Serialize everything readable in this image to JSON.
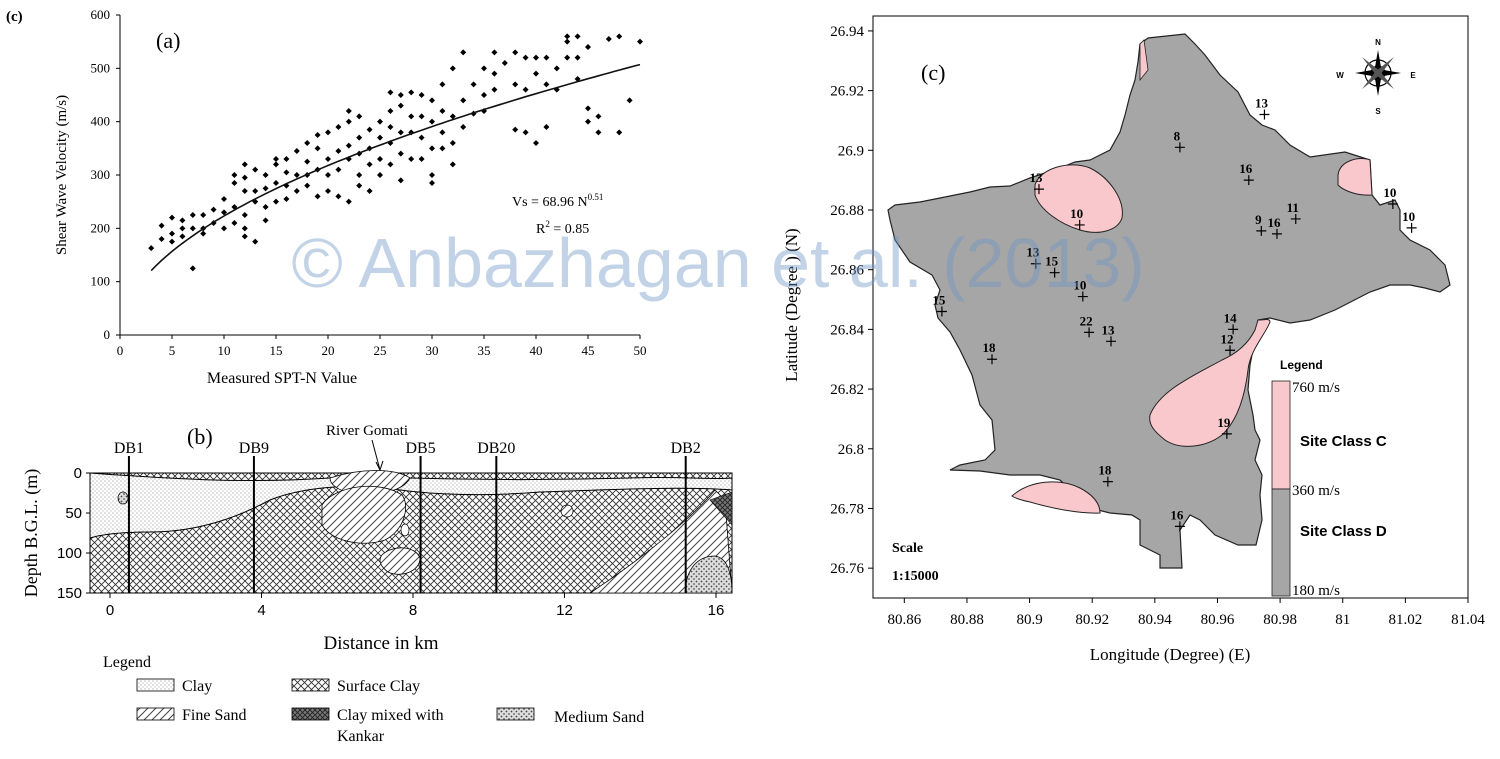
{
  "watermark": "© Anbazhagan et al. (2013)",
  "panel_a": {
    "corner_label": "(c)",
    "panel_label": "(a)",
    "equation_main": "Vs = 68.96 N",
    "equation_exp": "0.51",
    "r2_main": "R",
    "r2_sup": "2",
    "r2_value": " = 0.85"
  },
  "panel_b": {
    "panel_label": "(b)",
    "river_label": "River Gomati",
    "boreholes": [
      {
        "name": "DB1",
        "km": 0.5
      },
      {
        "name": "DB9",
        "km": 3.8
      },
      {
        "name": "DB5",
        "km": 8.2
      },
      {
        "name": "DB20",
        "km": 10.2
      },
      {
        "name": "DB2",
        "km": 15.2
      }
    ],
    "legend_title": "Legend",
    "legend": {
      "clay": "Clay",
      "fine_sand": "Fine Sand",
      "surface_clay": "Surface Clay",
      "kankar_1": "Clay mixed with",
      "kankar_2": "Kankar",
      "medium_sand": "Medium Sand"
    }
  },
  "panel_c": {
    "panel_label": "(c)",
    "compass": {
      "n": "N",
      "s": "S",
      "e": "E",
      "w": "W"
    },
    "scale_title": "Scale",
    "scale_value": "1:15000",
    "legend_title": "Legend",
    "colorbar": {
      "top": "760 m/s",
      "mid": "360 m/s",
      "bottom": "180 m/s",
      "class_c": "Site Class C",
      "class_d": "Site Class D",
      "color_c": "#f8c8cc",
      "color_d": "#a6a6a6"
    },
    "points": [
      {
        "label": "13",
        "lon": 80.975,
        "lat": 26.912
      },
      {
        "label": "8",
        "lon": 80.948,
        "lat": 26.901
      },
      {
        "label": "16",
        "lon": 80.97,
        "lat": 26.89
      },
      {
        "label": "13",
        "lon": 80.903,
        "lat": 26.887
      },
      {
        "label": "10",
        "lon": 80.916,
        "lat": 26.875
      },
      {
        "label": "10",
        "lon": 81.016,
        "lat": 26.882
      },
      {
        "label": "10",
        "lon": 81.022,
        "lat": 26.874
      },
      {
        "label": "9",
        "lon": 80.974,
        "lat": 26.873
      },
      {
        "label": "16",
        "lon": 80.979,
        "lat": 26.872
      },
      {
        "label": "11",
        "lon": 80.985,
        "lat": 26.877
      },
      {
        "label": "13",
        "lon": 80.902,
        "lat": 26.862
      },
      {
        "label": "15",
        "lon": 80.908,
        "lat": 26.859
      },
      {
        "label": "15",
        "lon": 80.872,
        "lat": 26.846
      },
      {
        "label": "10",
        "lon": 80.917,
        "lat": 26.851
      },
      {
        "label": "14",
        "lon": 80.965,
        "lat": 26.84
      },
      {
        "label": "12",
        "lon": 80.964,
        "lat": 26.833
      },
      {
        "label": "22",
        "lon": 80.919,
        "lat": 26.839
      },
      {
        "label": "13",
        "lon": 80.926,
        "lat": 26.836
      },
      {
        "label": "18",
        "lon": 80.888,
        "lat": 26.83
      },
      {
        "label": "19",
        "lon": 80.963,
        "lat": 26.805
      },
      {
        "label": "18",
        "lon": 80.925,
        "lat": 26.789
      },
      {
        "label": "16",
        "lon": 80.948,
        "lat": 26.774
      }
    ]
  },
  "chart_data": [
    {
      "type": "scatter",
      "xlabel": "Measured SPT-N Value",
      "ylabel": "Shear Wave Velocity (m/s)",
      "xlim": [
        0,
        50
      ],
      "ylim": [
        0,
        600
      ],
      "xticks": [
        0,
        5,
        10,
        15,
        20,
        25,
        30,
        35,
        40,
        45,
        50
      ],
      "yticks": [
        0,
        100,
        200,
        300,
        400,
        500,
        600
      ],
      "fit": {
        "a": 68.96,
        "b": 0.51,
        "r2": 0.85
      },
      "points": [
        [
          3,
          163
        ],
        [
          4,
          180
        ],
        [
          4,
          205
        ],
        [
          5,
          190
        ],
        [
          5,
          220
        ],
        [
          5,
          175
        ],
        [
          6,
          200
        ],
        [
          6,
          215
        ],
        [
          6,
          185
        ],
        [
          7,
          125
        ],
        [
          7,
          225
        ],
        [
          7,
          200
        ],
        [
          8,
          190
        ],
        [
          8,
          225
        ],
        [
          8,
          200
        ],
        [
          9,
          235
        ],
        [
          9,
          210
        ],
        [
          10,
          200
        ],
        [
          10,
          255
        ],
        [
          10,
          230
        ],
        [
          11,
          240
        ],
        [
          11,
          285
        ],
        [
          11,
          210
        ],
        [
          11,
          300
        ],
        [
          12,
          270
        ],
        [
          12,
          295
        ],
        [
          12,
          320
        ],
        [
          12,
          185
        ],
        [
          12,
          200
        ],
        [
          12,
          225
        ],
        [
          13,
          310
        ],
        [
          13,
          270
        ],
        [
          13,
          250
        ],
        [
          13,
          175
        ],
        [
          14,
          240
        ],
        [
          14,
          215
        ],
        [
          14,
          300
        ],
        [
          14,
          275
        ],
        [
          15,
          320
        ],
        [
          15,
          285
        ],
        [
          15,
          250
        ],
        [
          15,
          330
        ],
        [
          16,
          305
        ],
        [
          16,
          330
        ],
        [
          16,
          280
        ],
        [
          16,
          255
        ],
        [
          17,
          300
        ],
        [
          17,
          270
        ],
        [
          17,
          345
        ],
        [
          18,
          325
        ],
        [
          18,
          300
        ],
        [
          18,
          280
        ],
        [
          18,
          360
        ],
        [
          19,
          310
        ],
        [
          19,
          350
        ],
        [
          19,
          260
        ],
        [
          19,
          375
        ],
        [
          20,
          330
        ],
        [
          20,
          300
        ],
        [
          20,
          380
        ],
        [
          20,
          270
        ],
        [
          21,
          345
        ],
        [
          21,
          390
        ],
        [
          21,
          310
        ],
        [
          21,
          260
        ],
        [
          22,
          400
        ],
        [
          22,
          355
        ],
        [
          22,
          330
        ],
        [
          22,
          420
        ],
        [
          22,
          250
        ],
        [
          23,
          370
        ],
        [
          23,
          340
        ],
        [
          23,
          300
        ],
        [
          23,
          410
        ],
        [
          23,
          280
        ],
        [
          24,
          385
        ],
        [
          24,
          350
        ],
        [
          24,
          320
        ],
        [
          24,
          270
        ],
        [
          25,
          400
        ],
        [
          25,
          370
        ],
        [
          25,
          330
        ],
        [
          25,
          300
        ],
        [
          26,
          455
        ],
        [
          26,
          420
        ],
        [
          26,
          390
        ],
        [
          26,
          360
        ],
        [
          26,
          320
        ],
        [
          27,
          450
        ],
        [
          27,
          430
        ],
        [
          27,
          380
        ],
        [
          27,
          340
        ],
        [
          27,
          290
        ],
        [
          28,
          455
        ],
        [
          28,
          410
        ],
        [
          28,
          380
        ],
        [
          28,
          330
        ],
        [
          29,
          450
        ],
        [
          29,
          410
        ],
        [
          29,
          370
        ],
        [
          29,
          330
        ],
        [
          30,
          440
        ],
        [
          30,
          400
        ],
        [
          30,
          350
        ],
        [
          30,
          300
        ],
        [
          30,
          285
        ],
        [
          31,
          470
        ],
        [
          31,
          420
        ],
        [
          31,
          380
        ],
        [
          31,
          350
        ],
        [
          32,
          500
        ],
        [
          32,
          410
        ],
        [
          32,
          360
        ],
        [
          32,
          320
        ],
        [
          33,
          530
        ],
        [
          33,
          440
        ],
        [
          33,
          390
        ],
        [
          34,
          470
        ],
        [
          34,
          415
        ],
        [
          35,
          500
        ],
        [
          35,
          450
        ],
        [
          35,
          420
        ],
        [
          36,
          530
        ],
        [
          36,
          490
        ],
        [
          36,
          460
        ],
        [
          37,
          510
        ],
        [
          38,
          530
        ],
        [
          38,
          470
        ],
        [
          38,
          385
        ],
        [
          39,
          520
        ],
        [
          39,
          460
        ],
        [
          39,
          380
        ],
        [
          40,
          520
        ],
        [
          40,
          490
        ],
        [
          40,
          360
        ],
        [
          41,
          520
        ],
        [
          41,
          470
        ],
        [
          41,
          390
        ],
        [
          42,
          500
        ],
        [
          42,
          460
        ],
        [
          43,
          560
        ],
        [
          43,
          550
        ],
        [
          43,
          520
        ],
        [
          44,
          560
        ],
        [
          44,
          520
        ],
        [
          44,
          480
        ],
        [
          45,
          540
        ],
        [
          45,
          425
        ],
        [
          45,
          400
        ],
        [
          46,
          410
        ],
        [
          46,
          380
        ],
        [
          47,
          555
        ],
        [
          48,
          560
        ],
        [
          48,
          380
        ],
        [
          49,
          440
        ],
        [
          50,
          550
        ]
      ]
    },
    {
      "type": "table",
      "title": "",
      "xlabel": "Distance in km",
      "ylabel": "Depth B.G.L. (m)",
      "xlim": [
        0,
        16
      ],
      "ylim": [
        150,
        0
      ],
      "xticks": [
        0,
        4,
        8,
        12,
        16
      ],
      "yticks": [
        0,
        50,
        100,
        150
      ]
    },
    {
      "type": "heatmap",
      "xlabel": "Longitude (Degree) (E)",
      "ylabel": "Latitude (Degree ) (N)",
      "xlim": [
        80.85,
        81.04
      ],
      "ylim": [
        26.75,
        26.945
      ],
      "xticks": [
        80.86,
        80.88,
        80.9,
        80.92,
        80.94,
        80.96,
        80.98,
        81,
        81.02,
        81.04
      ],
      "yticks": [
        26.76,
        26.78,
        26.8,
        26.82,
        26.84,
        26.86,
        26.88,
        26.9,
        26.92,
        26.94
      ]
    }
  ]
}
